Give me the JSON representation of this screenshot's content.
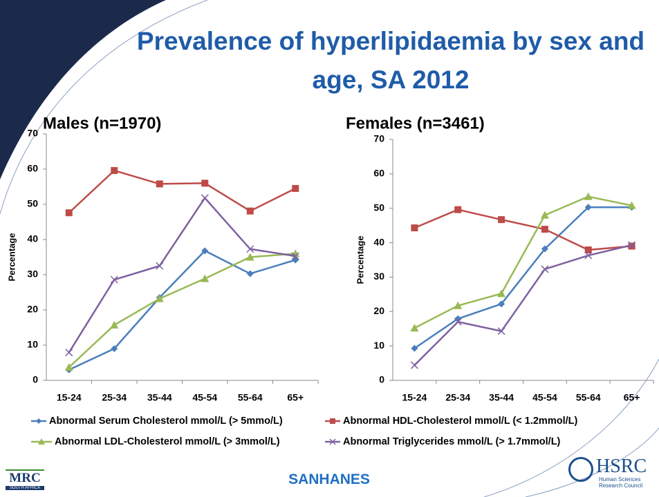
{
  "slide": {
    "title": "Prevalence of hyperlipidaemia by sex and age, SA 2012",
    "footer": "SANHANES",
    "mrc_logo": {
      "name": "MRC",
      "country": "SOUTH AFRICA"
    },
    "hsrc_logo": {
      "name": "HSRC",
      "full": "Human Sciences Research Council"
    }
  },
  "chart_data": [
    {
      "type": "line",
      "title": "Males (n=1970)",
      "ylabel": "Percentage",
      "categories": [
        "15-24",
        "25-34",
        "35-44",
        "45-54",
        "55-64",
        "65+"
      ],
      "ylim": [
        0,
        70
      ],
      "yticks": [
        0,
        10,
        20,
        30,
        40,
        50,
        60,
        70
      ],
      "legend": "bottom",
      "series": [
        {
          "name": "Abnormal Serum Cholesterol mmol/L (> 5mmo/L)",
          "color": "#4a7ebb",
          "marker": "diamond",
          "values": [
            3,
            9,
            23.5,
            36.8,
            30.3,
            34.2
          ]
        },
        {
          "name": "Abnormal HDL-Cholesterol mmol/L (< 1.2mmol/L)",
          "color": "#be4b48",
          "marker": "square",
          "values": [
            47.6,
            59.6,
            55.8,
            56,
            48.1,
            54.5
          ]
        },
        {
          "name": "Abnormal LDL-Cholesterol mmol/L (> 3mmol/L)",
          "color": "#98b954",
          "marker": "triangle",
          "values": [
            3.7,
            15.7,
            23.2,
            28.9,
            35,
            36
          ]
        },
        {
          "name": "Abnormal Triglycerides mmol/L  (> 1.7mmol/L)",
          "color": "#7d60a0",
          "marker": "x",
          "values": [
            7.9,
            28.6,
            32.5,
            51.8,
            37.3,
            35.3
          ]
        }
      ]
    },
    {
      "type": "line",
      "title": "Females (n=3461)",
      "ylabel": "Percentage",
      "categories": [
        "15-24",
        "25-34",
        "35-44",
        "45-54",
        "55-64",
        "65+"
      ],
      "ylim": [
        0,
        70
      ],
      "yticks": [
        0,
        10,
        20,
        30,
        40,
        50,
        60,
        70
      ],
      "series": [
        {
          "color": "#4a7ebb",
          "marker": "diamond",
          "values": [
            9.3,
            17.9,
            22.2,
            38.2,
            50.3,
            50.3
          ]
        },
        {
          "color": "#be4b48",
          "marker": "square",
          "values": [
            44.3,
            49.6,
            46.7,
            43.9,
            37.9,
            39
          ]
        },
        {
          "color": "#98b954",
          "marker": "triangle",
          "values": [
            15.2,
            21.7,
            25.2,
            48,
            53.4,
            50.8
          ]
        },
        {
          "color": "#7d60a0",
          "marker": "x",
          "values": [
            4.4,
            17,
            14.3,
            32.3,
            36.3,
            39.3
          ]
        }
      ]
    }
  ]
}
